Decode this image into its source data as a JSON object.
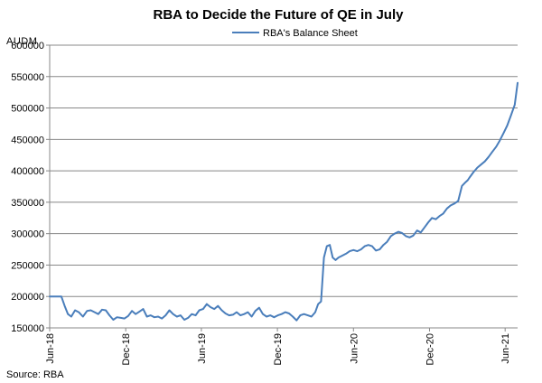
{
  "chart_data": {
    "type": "line",
    "title": "RBA to Decide the Future of QE in July",
    "unit_label": "AUDM",
    "source": "Source: RBA",
    "legend_position": "top-center",
    "grid": true,
    "ylim": [
      150000,
      600000
    ],
    "y_ticks": [
      150000,
      200000,
      250000,
      300000,
      350000,
      400000,
      450000,
      500000,
      550000,
      600000
    ],
    "y_tick_labels": [
      "150000",
      "200000",
      "250000",
      "300000",
      "350000",
      "400000",
      "450000",
      "500000",
      "550000",
      "600000"
    ],
    "x_range": [
      "2018-06-01",
      "2021-07-01"
    ],
    "x_ticks": [
      "2018-06-01",
      "2018-12-01",
      "2019-06-01",
      "2019-12-01",
      "2020-06-01",
      "2020-12-01",
      "2021-06-01"
    ],
    "x_tick_labels": [
      "Jun-18",
      "Dec-18",
      "Jun-19",
      "Dec-19",
      "Jun-20",
      "Dec-20",
      "Jun-21"
    ],
    "series": [
      {
        "name": "RBA's Balance Sheet",
        "color": "#4a7ebb",
        "x": [
          "2018-06-01",
          "2018-06-15",
          "2018-06-29",
          "2018-07-07",
          "2018-07-15",
          "2018-07-23",
          "2018-08-01",
          "2018-08-10",
          "2018-08-20",
          "2018-08-30",
          "2018-09-08",
          "2018-09-17",
          "2018-09-26",
          "2018-10-05",
          "2018-10-14",
          "2018-10-23",
          "2018-11-01",
          "2018-11-10",
          "2018-11-19",
          "2018-11-28",
          "2018-12-07",
          "2018-12-16",
          "2018-12-25",
          "2019-01-03",
          "2019-01-12",
          "2019-01-21",
          "2019-01-30",
          "2019-02-08",
          "2019-02-17",
          "2019-02-26",
          "2019-03-07",
          "2019-03-16",
          "2019-03-25",
          "2019-04-03",
          "2019-04-12",
          "2019-04-21",
          "2019-04-30",
          "2019-05-09",
          "2019-05-18",
          "2019-05-27",
          "2019-06-05",
          "2019-06-14",
          "2019-06-23",
          "2019-07-02",
          "2019-07-11",
          "2019-07-20",
          "2019-07-29",
          "2019-08-07",
          "2019-08-16",
          "2019-08-25",
          "2019-09-03",
          "2019-09-12",
          "2019-09-21",
          "2019-09-30",
          "2019-10-09",
          "2019-10-18",
          "2019-10-27",
          "2019-11-05",
          "2019-11-14",
          "2019-11-23",
          "2019-12-02",
          "2019-12-11",
          "2019-12-20",
          "2019-12-29",
          "2020-01-07",
          "2020-01-16",
          "2020-01-25",
          "2020-02-03",
          "2020-02-12",
          "2020-02-21",
          "2020-03-01",
          "2020-03-08",
          "2020-03-15",
          "2020-03-22",
          "2020-03-29",
          "2020-04-05",
          "2020-04-12",
          "2020-04-19",
          "2020-04-26",
          "2020-05-05",
          "2020-05-14",
          "2020-05-23",
          "2020-06-01",
          "2020-06-10",
          "2020-06-19",
          "2020-06-28",
          "2020-07-07",
          "2020-07-16",
          "2020-07-25",
          "2020-08-03",
          "2020-08-12",
          "2020-08-21",
          "2020-08-30",
          "2020-09-08",
          "2020-09-17",
          "2020-09-26",
          "2020-10-05",
          "2020-10-14",
          "2020-10-23",
          "2020-11-01",
          "2020-11-10",
          "2020-11-19",
          "2020-11-28",
          "2020-12-07",
          "2020-12-16",
          "2020-12-25",
          "2021-01-03",
          "2021-01-12",
          "2021-01-21",
          "2021-01-30",
          "2021-02-08",
          "2021-02-17",
          "2021-02-26",
          "2021-03-03",
          "2021-03-08",
          "2021-03-17",
          "2021-03-26",
          "2021-04-04",
          "2021-04-13",
          "2021-04-22",
          "2021-05-01",
          "2021-05-10",
          "2021-05-19",
          "2021-05-28",
          "2021-06-06",
          "2021-06-15",
          "2021-06-24",
          "2021-07-01"
        ],
        "values": [
          200000,
          200000,
          200000,
          185000,
          172000,
          168000,
          178000,
          175000,
          168000,
          177000,
          178000,
          175000,
          172000,
          179000,
          178000,
          170000,
          163000,
          167000,
          166000,
          165000,
          169000,
          177000,
          172000,
          176000,
          180000,
          168000,
          170000,
          167000,
          168000,
          165000,
          170000,
          178000,
          172000,
          168000,
          170000,
          163000,
          166000,
          172000,
          170000,
          178000,
          180000,
          188000,
          183000,
          180000,
          185000,
          178000,
          173000,
          170000,
          171000,
          175000,
          170000,
          172000,
          175000,
          168000,
          177000,
          182000,
          172000,
          168000,
          170000,
          167000,
          170000,
          172000,
          175000,
          173000,
          168000,
          162000,
          170000,
          172000,
          170000,
          168000,
          175000,
          188000,
          192000,
          262000,
          280000,
          282000,
          262000,
          258000,
          262000,
          265000,
          268000,
          272000,
          274000,
          272000,
          275000,
          280000,
          282000,
          280000,
          273000,
          275000,
          282000,
          287000,
          296000,
          300000,
          303000,
          301000,
          296000,
          294000,
          297000,
          305000,
          302000,
          310000,
          318000,
          325000,
          323000,
          328000,
          332000,
          340000,
          345000,
          348000,
          352000,
          376000,
          382000,
          385000,
          390000,
          398000,
          405000,
          410000,
          415000,
          422000,
          430000,
          438000,
          448000,
          460000,
          472000,
          488000,
          505000,
          540000
        ]
      }
    ]
  }
}
